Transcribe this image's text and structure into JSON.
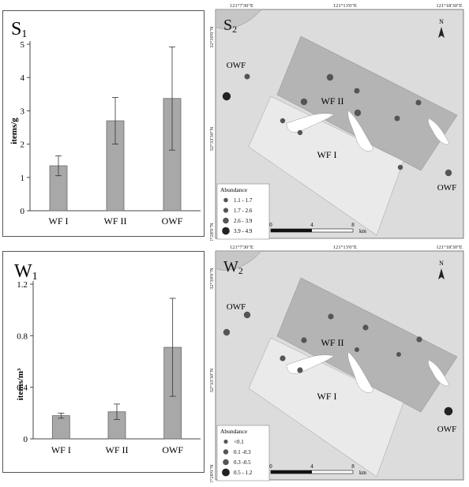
{
  "colors": {
    "bar": "#a8a8a8",
    "bar_stroke": "#6a6a6a",
    "sea": "#dcdcdc",
    "land": "#c6c6c6",
    "wf_dark": "#b4b4b4",
    "wf_light": "#ececec",
    "dot": "#555555",
    "dot_dark": "#222222"
  },
  "chart_data": [
    {
      "type": "bar",
      "panel_label": "S",
      "panel_sub": "1",
      "ylabel": "items/g",
      "categories": [
        "WF I",
        "WF II",
        "OWF"
      ],
      "values": [
        1.35,
        2.7,
        3.37
      ],
      "errors": [
        0.3,
        0.7,
        1.55
      ],
      "ylim": [
        0,
        5
      ],
      "yticks": [
        "0",
        "1",
        "2",
        "3",
        "4",
        "5"
      ]
    },
    {
      "type": "bar",
      "panel_label": "W",
      "panel_sub": "1",
      "ylabel": "items/m³",
      "categories": [
        "WF I",
        "WF II",
        "OWF"
      ],
      "values": [
        0.18,
        0.21,
        0.71
      ],
      "errors": [
        0.02,
        0.06,
        0.38
      ],
      "ylim": [
        0,
        1.2
      ],
      "yticks": [
        "0",
        "0.4",
        "0.8",
        "1.2"
      ]
    }
  ],
  "maps": [
    {
      "panel_label": "S",
      "panel_sub": "2",
      "top_ticks": [
        "121°7'30\"E",
        "121°13'0\"E",
        "121°18'30\"E"
      ],
      "left_ticks": [
        "32°39'0\"N",
        "32°33'30\"N",
        "32°28'0\"N"
      ],
      "labels": {
        "owf_top": "OWF",
        "wf2": "WF II",
        "wf1": "WF I",
        "owf_bottom": "OWF"
      },
      "legend_title": "Abundance",
      "legend_items": [
        "1.1 - 1.7",
        "1.7 - 2.6",
        "2.6 - 3.9",
        "3.9 - 4.9"
      ],
      "scale_ticks": [
        "0",
        "4",
        "8"
      ],
      "scale_unit": "km",
      "north": "N"
    },
    {
      "panel_label": "W",
      "panel_sub": "2",
      "top_ticks": [
        "121°7'30\"E",
        "121°13'0\"E",
        "121°18'30\"E"
      ],
      "left_ticks": [
        "32°39'0\"N",
        "32°33'30\"N",
        "32°28'0\"N"
      ],
      "labels": {
        "owf_top": "OWF",
        "wf2": "WF II",
        "wf1": "WF I",
        "owf_bottom": "OWF"
      },
      "legend_title": "Abundance",
      "legend_items": [
        "<0.1",
        "0.1 -0.3",
        "0.3 -0.5",
        "0.5 - 1.2"
      ],
      "scale_ticks": [
        "0",
        "4",
        "8"
      ],
      "scale_unit": "km",
      "north": "N"
    }
  ]
}
